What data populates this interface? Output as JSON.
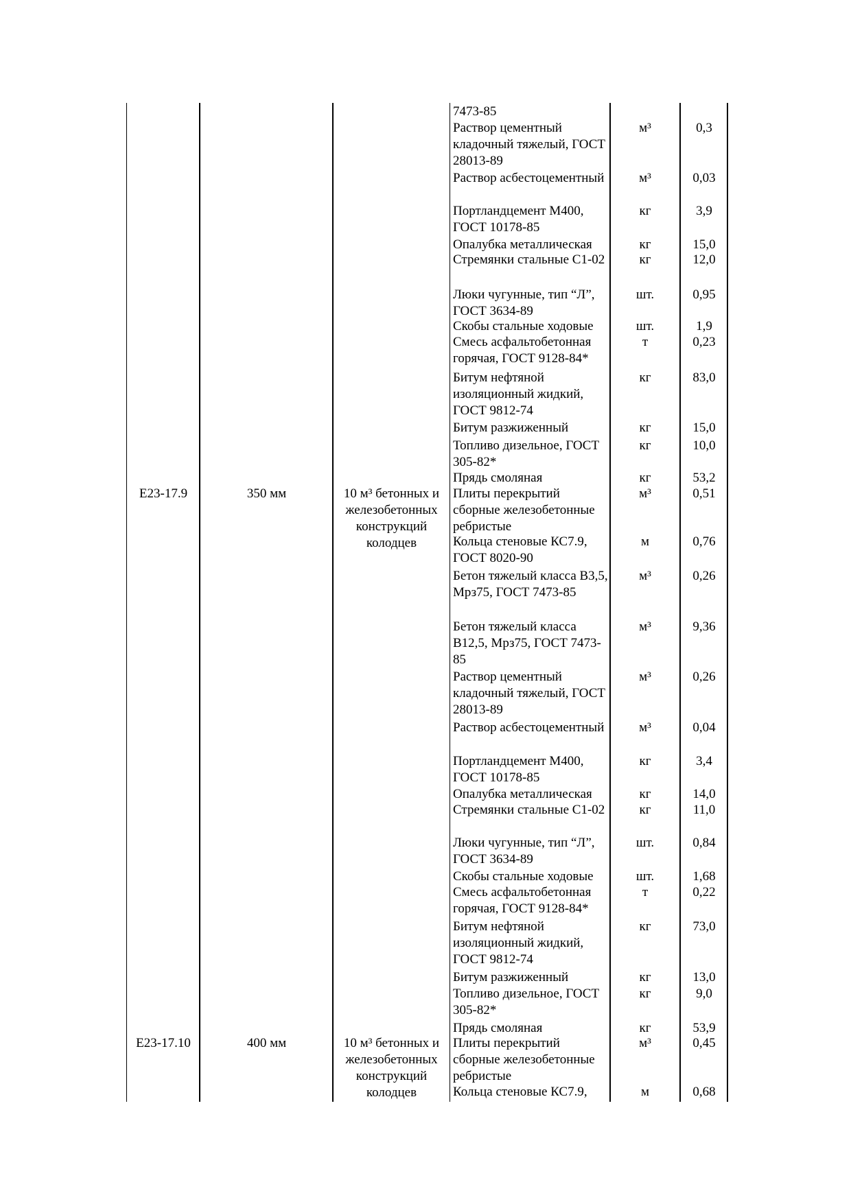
{
  "continuation": {
    "text": "7473-85"
  },
  "items": [
    {
      "name": "Раствор цементный кладочный тяжелый, ГОСТ 28013-89",
      "unit": "м³",
      "value": "0,3"
    },
    {
      "name": "Раствор асбестоцементный",
      "unit": "м³",
      "value": "0,03"
    },
    {
      "name": "Портландцемент М400, ГОСТ 10178-85",
      "unit": "кг",
      "value": "3,9"
    },
    {
      "name": "Опалубка металлическая",
      "unit": "кг",
      "value": "15,0"
    },
    {
      "name": "Стремянки стальные С1-02",
      "unit": "кг",
      "value": "12,0"
    },
    {
      "name": "Люки чугунные, тип “Л”, ГОСТ 3634-89",
      "unit": "шт.",
      "value": "0,95"
    },
    {
      "name": "Скобы стальные ходовые",
      "unit": "шт.",
      "value": "1,9"
    },
    {
      "name": "Смесь асфальтобетонная горячая, ГОСТ 9128-84*",
      "unit": "т",
      "value": "0,23"
    },
    {
      "name": "Битум нефтяной изоляционный жидкий, ГОСТ 9812-74",
      "unit": "кг",
      "value": "83,0"
    },
    {
      "name": "Битум разжиженный",
      "unit": "кг",
      "value": "15,0"
    },
    {
      "name": "Топливо дизельное, ГОСТ 305-82*",
      "unit": "кг",
      "value": "10,0"
    },
    {
      "name": "Прядь смоляная",
      "unit": "кг",
      "value": "53,2"
    },
    {
      "name": "Плиты перекрытий сборные железобетонные ребристые",
      "unit": "м³",
      "value": "0,51"
    },
    {
      "name": "Кольца стеновые КС7.9, ГОСТ 8020-90",
      "unit": "м",
      "value": "0,76"
    },
    {
      "name": "Бетон тяжелый класса В3,5, Мрз75, ГОСТ 7473-85",
      "unit": "м³",
      "value": "0,26"
    },
    {
      "name": "Бетон тяжелый класса В12,5, Мрз75, ГОСТ 7473-85",
      "unit": "м³",
      "value": "9,36"
    },
    {
      "name": "Раствор цементный кладочный тяжелый, ГОСТ 28013-89",
      "unit": "м³",
      "value": "0,26"
    },
    {
      "name": "Раствор асбестоцементный",
      "unit": "м³",
      "value": "0,04"
    },
    {
      "name": "Портландцемент М400, ГОСТ 10178-85",
      "unit": "кг",
      "value": "3,4"
    },
    {
      "name": "Опалубка металлическая",
      "unit": "кг",
      "value": "14,0"
    },
    {
      "name": "Стремянки стальные С1-02",
      "unit": "кг",
      "value": "11,0"
    },
    {
      "name": "Люки чугунные, тип “Л”, ГОСТ 3634-89",
      "unit": "шт.",
      "value": "0,84"
    },
    {
      "name": "Скобы стальные ходовые",
      "unit": "шт.",
      "value": "1,68"
    },
    {
      "name": "Смесь асфальтобетонная горячая, ГОСТ 9128-84*",
      "unit": "т",
      "value": "0,22"
    },
    {
      "name": "Битум нефтяной изоляционный жидкий, ГОСТ 9812-74",
      "unit": "кг",
      "value": "73,0"
    },
    {
      "name": "Битум разжиженный",
      "unit": "кг",
      "value": "13,0"
    },
    {
      "name": "Топливо дизельное, ГОСТ 305-82*",
      "unit": "кг",
      "value": "9,0"
    },
    {
      "name": "Прядь смоляная",
      "unit": "кг",
      "value": "53,9"
    },
    {
      "name": "Плиты перекрытий сборные железобетонные ребристые",
      "unit": "м³",
      "value": "0,45"
    },
    {
      "name": "Кольца стеновые КС7.9,",
      "unit": "м",
      "value": "0,68"
    }
  ],
  "groups": [
    {
      "code": "Е23-17.9",
      "diameter": "350 мм",
      "measure": "10 м³ бетонных и железобетонных конструкций колодцев"
    },
    {
      "code": "Е23-17.10",
      "diameter": "400 мм",
      "measure": "10 м³ бетонных и железобетонных конструкций колодцев"
    }
  ]
}
